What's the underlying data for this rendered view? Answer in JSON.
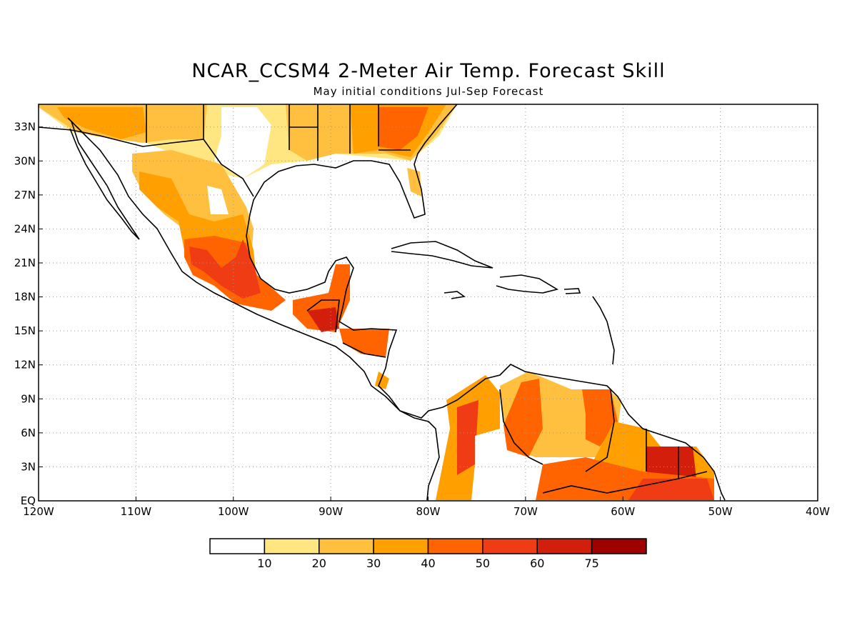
{
  "title": "NCAR_CCSM4 2-Meter Air Temp. Forecast Skill",
  "subtitle": "May initial conditions  Jul-Sep Forecast",
  "map": {
    "lon_range": [
      -120,
      -40
    ],
    "lat_range": [
      0,
      35
    ],
    "x_tick_labels": [
      "120W",
      "110W",
      "100W",
      "90W",
      "80W",
      "70W",
      "60W",
      "50W",
      "40W"
    ],
    "y_tick_labels": [
      "EQ",
      "3N",
      "6N",
      "9N",
      "12N",
      "15N",
      "18N",
      "21N",
      "24N",
      "27N",
      "30N",
      "33N"
    ],
    "grid": "dotted"
  },
  "colorbar": {
    "labels": [
      "10",
      "20",
      "30",
      "40",
      "50",
      "60",
      "75"
    ],
    "colors": [
      "#ffffff",
      "#ffe680",
      "#ffc040",
      "#ffa000",
      "#ff6400",
      "#f03c14",
      "#d21e0a",
      "#a00000"
    ]
  }
}
